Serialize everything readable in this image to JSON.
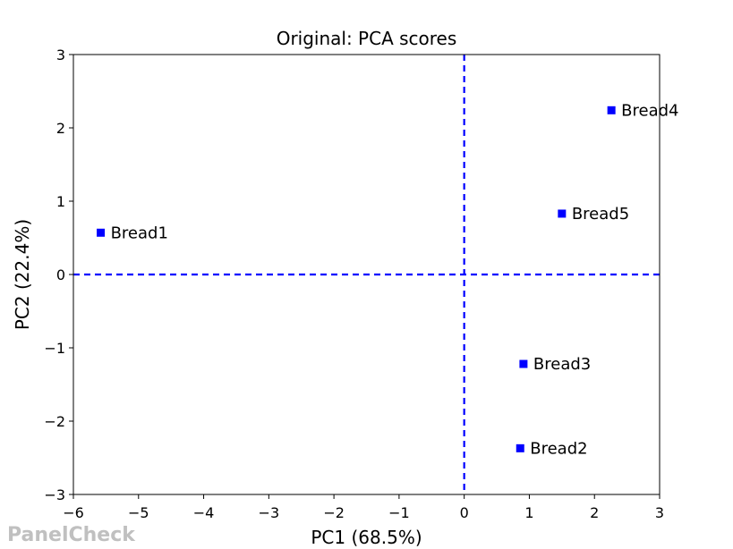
{
  "chart_data": {
    "type": "scatter",
    "title": "Original: PCA scores",
    "xlabel": "PC1 (68.5%)",
    "ylabel": "PC2 (22.4%)",
    "xlim": [
      -6,
      3
    ],
    "ylim": [
      -3,
      3
    ],
    "xticks": [
      -6,
      -5,
      -4,
      -3,
      -2,
      -1,
      0,
      1,
      2,
      3
    ],
    "yticks": [
      -3,
      -2,
      -1,
      0,
      1,
      2,
      3
    ],
    "xtick_labels": [
      "−6",
      "−5",
      "−4",
      "−3",
      "−2",
      "−1",
      "0",
      "1",
      "2",
      "3"
    ],
    "ytick_labels": [
      "−3",
      "−2",
      "−1",
      "0",
      "1",
      "2",
      "3"
    ],
    "reference_lines": {
      "x": 0,
      "y": 0,
      "style": "dashed",
      "color": "#0000ff"
    },
    "grid": false,
    "marker": "square",
    "marker_color": "#0000ff",
    "points": [
      {
        "label": "Bread1",
        "x": -5.58,
        "y": 0.57
      },
      {
        "label": "Bread2",
        "x": 0.86,
        "y": -2.37
      },
      {
        "label": "Bread3",
        "x": 0.91,
        "y": -1.22
      },
      {
        "label": "Bread4",
        "x": 2.26,
        "y": 2.24
      },
      {
        "label": "Bread5",
        "x": 1.5,
        "y": 0.83
      }
    ]
  },
  "watermark": "PanelCheck"
}
